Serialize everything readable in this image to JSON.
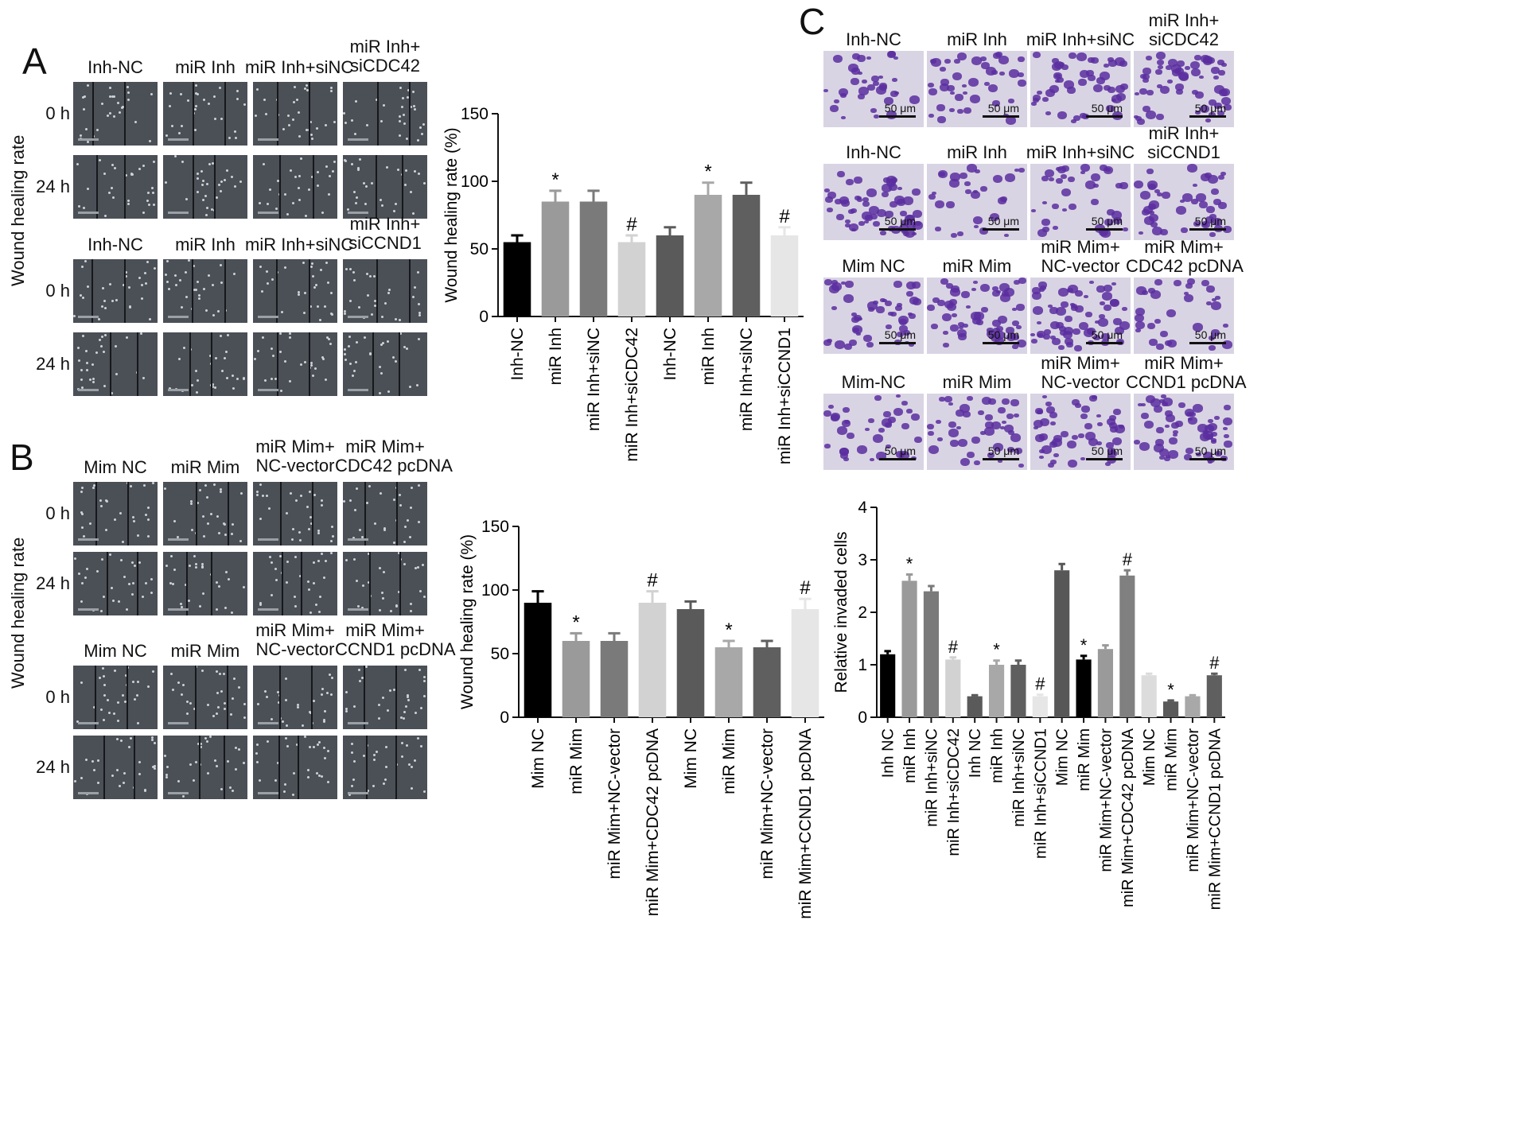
{
  "panels": {
    "A": {
      "letter": "A",
      "ylabel": "Wound healing rate",
      "blocks": [
        {
          "headers": [
            "Inh-NC",
            "miR Inh",
            "miR Inh+siNC",
            "miR Inh+\nsiCDC42"
          ],
          "rows": [
            "0 h",
            "24 h"
          ]
        },
        {
          "headers": [
            "Inh-NC",
            "miR Inh",
            "miR Inh+siNC",
            "miR Inh+\nsiCCND1"
          ],
          "rows": [
            "0 h",
            "24 h"
          ]
        }
      ]
    },
    "B": {
      "letter": "B",
      "ylabel": "Wound healing rate",
      "blocks": [
        {
          "headers": [
            "Mim NC",
            "miR Mim",
            "miR Mim+\nNC-vector",
            "miR Mim+\nCDC42 pcDNA"
          ],
          "rows": [
            "0 h",
            "24 h"
          ]
        },
        {
          "headers": [
            "Mim NC",
            "miR Mim",
            "miR Mim+\nNC-vector",
            "miR Mim+\nCCND1 pcDNA"
          ],
          "rows": [
            "0 h",
            "24 h"
          ]
        }
      ]
    },
    "C": {
      "letter": "C",
      "scale_label": "50 μm",
      "blocks": [
        {
          "headers": [
            "Inh-NC",
            "miR Inh",
            "miR Inh+siNC",
            "miR Inh+\nsiCDC42"
          ]
        },
        {
          "headers": [
            "Inh-NC",
            "miR Inh",
            "miR Inh+siNC",
            "miR Inh+\nsiCCND1"
          ]
        },
        {
          "headers": [
            "Mim NC",
            "miR Mim",
            "miR Mim+\nNC-vector",
            "miR Mim+\nCDC42 pcDNA"
          ]
        },
        {
          "headers": [
            "Mim-NC",
            "miR Mim",
            "miR Mim+\nNC-vector",
            "miR Mim+\nCCND1 pcDNA"
          ]
        }
      ]
    }
  },
  "chart_data": [
    {
      "id": "A",
      "type": "bar",
      "ylabel": "Wound healing rate (%)",
      "ylim": [
        0,
        150
      ],
      "yticks": [
        0,
        50,
        100,
        150
      ],
      "categories": [
        "Inh-NC",
        "miR Inh",
        "miR Inh+siNC",
        "miR Inh+siCDC42",
        "Inh-NC",
        "miR Inh",
        "miR Inh+siNC",
        "miR Inh+siCCND1"
      ],
      "values": [
        55,
        85,
        85,
        55,
        60,
        90,
        90,
        60
      ],
      "errors": [
        5,
        8,
        8,
        5,
        6,
        9,
        9,
        6
      ],
      "annotations": [
        "",
        "*",
        "",
        "#",
        "",
        "*",
        "",
        "#"
      ],
      "colors": [
        "#000000",
        "#9a9a9a",
        "#7a7a7a",
        "#d2d2d2",
        "#5a5a5a",
        "#a8a8a8",
        "#5f5f5f",
        "#e6e6e6"
      ]
    },
    {
      "id": "B",
      "type": "bar",
      "ylabel": "Wound healing rate (%)",
      "ylim": [
        0,
        150
      ],
      "yticks": [
        0,
        50,
        100,
        150
      ],
      "categories": [
        "Mim NC",
        "miR Mim",
        "miR Mim+NC-vector",
        "miR Mim+CDC42 pcDNA",
        "Mim NC",
        "miR Mim",
        "miR Mim+NC-vector",
        "miR Mim+CCND1 pcDNA"
      ],
      "values": [
        90,
        60,
        60,
        90,
        85,
        55,
        55,
        85
      ],
      "errors": [
        9,
        6,
        6,
        9,
        6,
        5,
        5,
        8
      ],
      "annotations": [
        "",
        "*",
        "",
        "#",
        "",
        "*",
        "",
        "#"
      ],
      "colors": [
        "#000000",
        "#9a9a9a",
        "#7a7a7a",
        "#d2d2d2",
        "#5a5a5a",
        "#a8a8a8",
        "#5f5f5f",
        "#e6e6e6"
      ]
    },
    {
      "id": "C",
      "type": "bar",
      "ylabel": "Relative invaded cells",
      "ylim": [
        0,
        4
      ],
      "yticks": [
        0,
        1,
        2,
        3,
        4
      ],
      "categories": [
        "Inh NC",
        "miR Inh",
        "miR Inh+siNC",
        "miR Inh+siCDC42",
        "Inh NC",
        "miR Inh",
        "miR Inh+siNC",
        "miR Inh+siCCND1",
        "Mim NC",
        "miR Mim",
        "miR Mim+NC-vector",
        "miR Mim+CDC42 pcDNA",
        "Mim NC",
        "miR Mim",
        "miR Mim+NC-vector",
        "miR Mim+CCND1 pcDNA"
      ],
      "values": [
        1.2,
        2.6,
        2.4,
        1.1,
        0.4,
        1.0,
        1.0,
        0.4,
        2.8,
        1.1,
        1.3,
        2.7,
        0.8,
        0.3,
        0.4,
        0.8
      ],
      "errors": [
        0.06,
        0.12,
        0.1,
        0.04,
        0.02,
        0.08,
        0.08,
        0.03,
        0.12,
        0.07,
        0.07,
        0.1,
        0.03,
        0.02,
        0.02,
        0.03
      ],
      "annotations": [
        "",
        "*",
        "",
        "#",
        "",
        "*",
        "",
        "#",
        "",
        "*",
        "",
        "#",
        "",
        "*",
        "",
        "#"
      ],
      "colors": [
        "#000000",
        "#9a9a9a",
        "#7a7a7a",
        "#d2d2d2",
        "#5a5a5a",
        "#a8a8a8",
        "#5f5f5f",
        "#e6e6e6",
        "#575757",
        "#000000",
        "#9a9a9a",
        "#808080",
        "#dcdcdc",
        "#5a5a5a",
        "#a8a8a8",
        "#5f5f5f"
      ]
    }
  ]
}
